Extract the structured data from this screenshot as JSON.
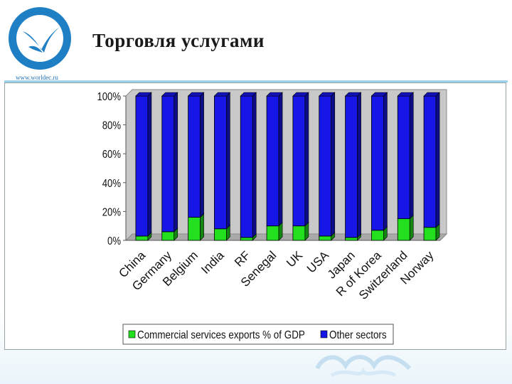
{
  "slide": {
    "title": "Торговля услугами",
    "site_url": "www.worldec.ru"
  },
  "colors": {
    "commercial": "#22e01e",
    "other": "#1616e6",
    "plot_bg": "#c8c8c8",
    "accent": "#1f6fb2"
  },
  "chart_data": {
    "type": "bar",
    "stacked": true,
    "percent": true,
    "categories": [
      "China",
      "Germany",
      "Belgium",
      "India",
      "RF",
      "Senegal",
      "UK",
      "USA",
      "Japan",
      "R of Korea",
      "Switzerland",
      "Norway"
    ],
    "series": [
      {
        "name": "Commercial services exports % of GDP",
        "values": [
          3,
          6,
          16,
          8,
          2,
          10,
          10,
          3,
          2,
          7,
          15,
          9
        ]
      },
      {
        "name": "Other sectors",
        "values": [
          97,
          94,
          84,
          92,
          98,
          90,
          90,
          97,
          98,
          93,
          85,
          91
        ]
      }
    ],
    "ylim": [
      0,
      100
    ],
    "yticks": [
      "0%",
      "20%",
      "40%",
      "60%",
      "80%",
      "100%"
    ],
    "xlabel": "",
    "ylabel": "",
    "legend_position": "bottom",
    "grid": false
  }
}
